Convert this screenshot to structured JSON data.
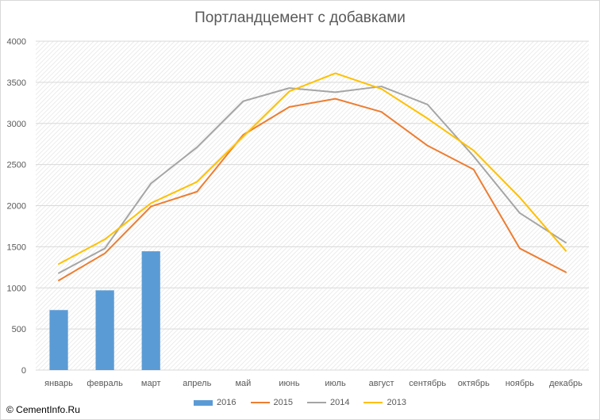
{
  "title": "Портландцемент с добавками",
  "watermark": "© CementInfo.Ru",
  "colors": {
    "2016": "#5b9bd5",
    "2015": "#ed7d31",
    "2014": "#a5a5a5",
    "2013": "#ffc000"
  },
  "chart_data": {
    "type": "bar+line",
    "title": "Портландцемент с добавками",
    "categories": [
      "январь",
      "февраль",
      "март",
      "апрель",
      "май",
      "июнь",
      "июль",
      "август",
      "сентябрь",
      "октябрь",
      "ноябрь",
      "декабрь"
    ],
    "ylim": [
      0,
      4000
    ],
    "yticks": [
      "0",
      "500",
      "1000",
      "1500",
      "2000",
      "2500",
      "3000",
      "3500",
      "4000"
    ],
    "grid": true,
    "legend_position": "bottom",
    "series": [
      {
        "name": "2016",
        "kind": "bar",
        "values": [
          730,
          970,
          1445,
          null,
          null,
          null,
          null,
          null,
          null,
          null,
          null,
          null
        ]
      },
      {
        "name": "2015",
        "kind": "line",
        "values": [
          1090,
          1420,
          1990,
          2170,
          2860,
          3200,
          3300,
          3140,
          2730,
          2440,
          1480,
          1190
        ]
      },
      {
        "name": "2014",
        "kind": "line",
        "values": [
          1180,
          1480,
          2270,
          2710,
          3270,
          3430,
          3380,
          3450,
          3230,
          2600,
          1910,
          1550
        ]
      },
      {
        "name": "2013",
        "kind": "line",
        "values": [
          1290,
          1590,
          2030,
          2290,
          2840,
          3390,
          3610,
          3420,
          3060,
          2670,
          2100,
          1450
        ]
      }
    ]
  }
}
